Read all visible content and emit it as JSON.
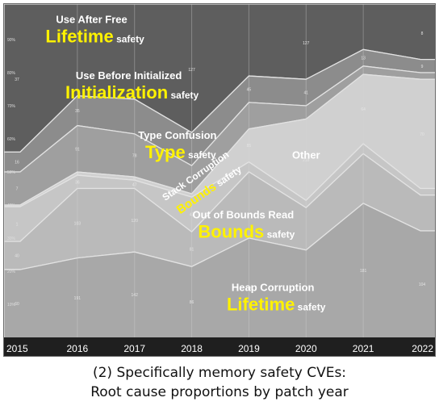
{
  "caption": {
    "line1": "(2) Specifically memory safety CVEs:",
    "line2": "Root cause proportions by patch year"
  },
  "chart_data": {
    "type": "area",
    "stacking": "percent",
    "x": [
      "2015",
      "2016",
      "2017",
      "2018",
      "2019",
      "2020",
      "2021",
      "2022"
    ],
    "ylim": [
      0,
      100
    ],
    "yticks": [
      "10%",
      "20%",
      "30%",
      "40%",
      "50%",
      "60%",
      "70%",
      "80%",
      "90%"
    ],
    "ytick_values": [
      10,
      20,
      30,
      40,
      50,
      60,
      70,
      80,
      90
    ],
    "grid": true,
    "legend": "none",
    "series": [
      {
        "values": [
          20.5,
          24.0,
          25.8,
          21.4,
          30.0,
          26.4,
          40.5,
          32.2
        ],
        "color": "#a8a8a8",
        "point_labels": [
          "60",
          "191",
          "142",
          "86",
          "146",
          "",
          "181",
          "104"
        ],
        "annotation": {
          "lines": [
            "Heap Corruption"
          ],
          "highlight": "Lifetime",
          "suffix": " safety",
          "x": 4.42,
          "y": 14.0
        }
      },
      {
        "values": [
          8.5,
          21.0,
          19.2,
          10.5,
          20.0,
          12.8,
          15.0,
          10.8
        ],
        "color": "#bababa",
        "point_labels": [
          "40",
          "103",
          "120",
          "81",
          "",
          "",
          "",
          ""
        ],
        "annotation": {
          "lines": [
            "Out of Bounds Read"
          ],
          "highlight": "Bounds",
          "suffix": " safety",
          "x": 3.9,
          "y": 36.0
        }
      },
      {
        "values": [
          10.5,
          4.0,
          2.5,
          10.5,
          3.0,
          2.2,
          3.0,
          2.0
        ],
        "color": "#c6c6c6",
        "point_labels": [
          "1",
          "36",
          "47",
          "43",
          "",
          "",
          "",
          ""
        ],
        "annotation": {
          "lines": [
            "Stack Corruption"
          ],
          "highlight": "Bounds",
          "suffix": " safety",
          "x": 3.1,
          "y": 48.0,
          "rotate": -35
        }
      },
      {
        "values": [
          0.5,
          1.0,
          1.0,
          1.0,
          10.0,
          24.6,
          21.0,
          33.0
        ],
        "color": "#d0d0d0",
        "point_labels": [
          "",
          "3",
          "6",
          "",
          "85",
          "218",
          "64",
          "70"
        ],
        "annotation": {
          "lines": [
            "Other"
          ],
          "highlight": "",
          "suffix": "",
          "x": 5.0,
          "y": 54.0
        }
      },
      {
        "values": [
          10.0,
          14.0,
          13.0,
          8.5,
          8.0,
          4.0,
          2.5,
          2.0
        ],
        "color": "#9f9f9f",
        "point_labels": [
          "7",
          "91",
          "78",
          "",
          "",
          "",
          "",
          ""
        ],
        "annotation": {
          "lines": [
            "Type Confusion"
          ],
          "highlight": "Type",
          "suffix": " safety",
          "x": 2.75,
          "y": 60.0
        }
      },
      {
        "values": [
          6.0,
          9.0,
          10.5,
          10.0,
          8.0,
          8.0,
          5.0,
          4.0
        ],
        "color": "#8c8c8c",
        "point_labels": [
          "16",
          "35",
          "",
          "",
          "45",
          "41",
          "13",
          "9"
        ],
        "annotation": {
          "lines": [
            "Use Before Initialized"
          ],
          "highlight": "Initialization",
          "suffix": " safety",
          "x": 1.9,
          "y": 78.0
        }
      },
      {
        "values": [
          44.0,
          27.0,
          28.0,
          38.1,
          21.0,
          22.0,
          13.0,
          16.0
        ],
        "color": "#5e5e5e",
        "point_labels": [
          "37",
          "",
          "",
          "127",
          "",
          "127",
          "",
          "8"
        ],
        "annotation": {
          "lines": [
            "Use After Free"
          ],
          "highlight": "Lifetime",
          "suffix": " safety",
          "x": 1.25,
          "y": 95.0
        }
      }
    ]
  }
}
